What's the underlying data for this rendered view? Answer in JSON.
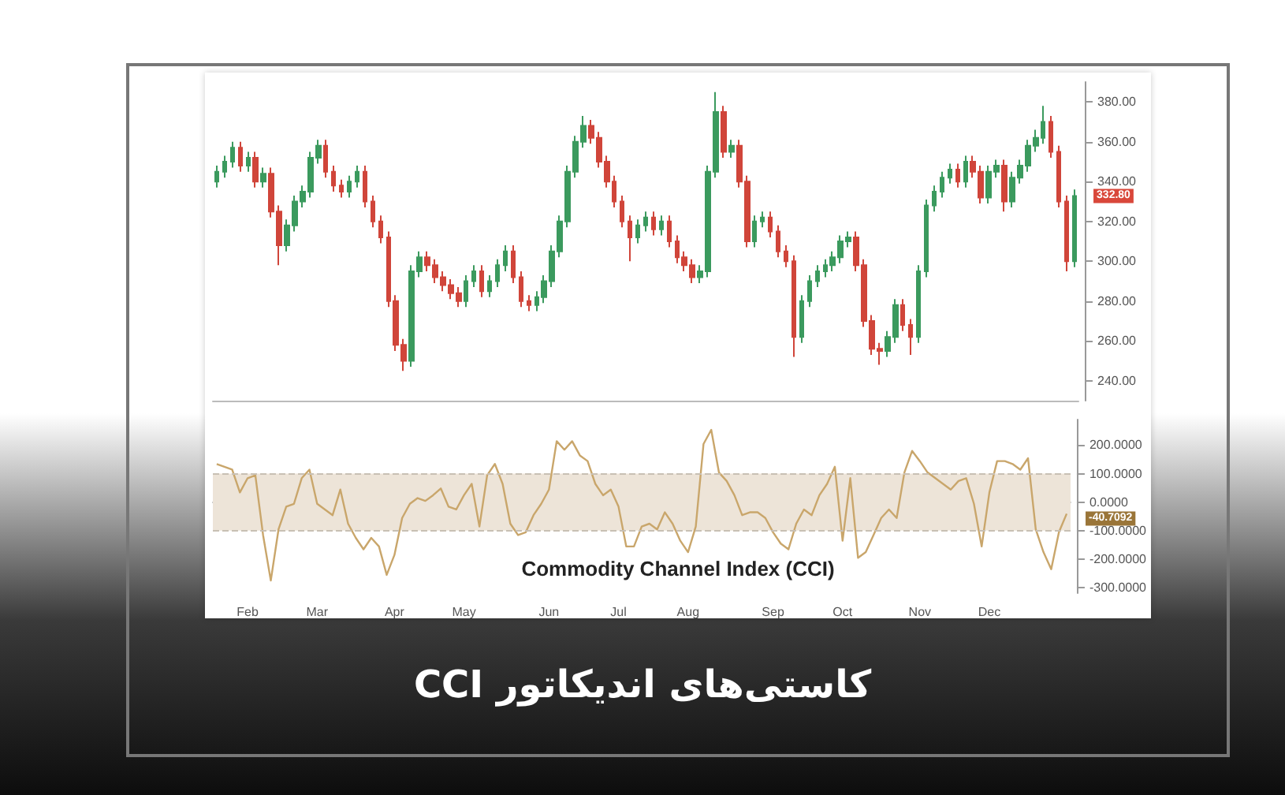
{
  "chart_data": [
    {
      "type": "candlestick",
      "title": "کاستی‌های اندیکاتور CCI",
      "categories": [
        null,
        null,
        null,
        null,
        null,
        null,
        null,
        null,
        null,
        null,
        null,
        null,
        null,
        null,
        null,
        null,
        null,
        null,
        null,
        null,
        null,
        null,
        null,
        null,
        null,
        null,
        null,
        null,
        null,
        null,
        null,
        null,
        null,
        null,
        null,
        null,
        null,
        null,
        null,
        null,
        null,
        null,
        null,
        null,
        null,
        null,
        null,
        null,
        null,
        null,
        null,
        null,
        null,
        null,
        null,
        null,
        null,
        null,
        null,
        null,
        null,
        null,
        null,
        null,
        null,
        null,
        null,
        null,
        null,
        null,
        null,
        null,
        null,
        null,
        null,
        null,
        null,
        null,
        null,
        null,
        null,
        null,
        null,
        null,
        null,
        null,
        null,
        null,
        null,
        null,
        null,
        null,
        null,
        null,
        null,
        null,
        null,
        null,
        null,
        null,
        null,
        null,
        null,
        null,
        null,
        null,
        null,
        null,
        null,
        null,
        null
      ],
      "ohlc": [
        [
          340,
          348,
          337,
          345
        ],
        [
          345,
          353,
          342,
          350
        ],
        [
          350,
          360,
          347,
          357
        ],
        [
          357,
          360,
          345,
          348
        ],
        [
          348,
          355,
          345,
          352
        ],
        [
          352,
          355,
          337,
          340
        ],
        [
          340,
          347,
          337,
          344
        ],
        [
          344,
          347,
          322,
          325
        ],
        [
          325,
          328,
          298,
          308
        ],
        [
          308,
          321,
          305,
          318
        ],
        [
          318,
          333,
          315,
          330
        ],
        [
          330,
          338,
          327,
          335
        ],
        [
          335,
          355,
          332,
          352
        ],
        [
          352,
          361,
          349,
          358
        ],
        [
          358,
          361,
          342,
          345
        ],
        [
          345,
          348,
          335,
          338
        ],
        [
          338,
          341,
          332,
          335
        ],
        [
          335,
          343,
          332,
          340
        ],
        [
          340,
          348,
          337,
          345
        ],
        [
          345,
          348,
          327,
          330
        ],
        [
          330,
          333,
          317,
          320
        ],
        [
          320,
          323,
          309,
          312
        ],
        [
          312,
          315,
          277,
          280
        ],
        [
          280,
          283,
          255,
          258
        ],
        [
          258,
          261,
          245,
          250
        ],
        [
          250,
          298,
          247,
          295
        ],
        [
          295,
          305,
          292,
          302
        ],
        [
          302,
          305,
          295,
          298
        ],
        [
          298,
          301,
          289,
          292
        ],
        [
          292,
          295,
          285,
          288
        ],
        [
          288,
          291,
          281,
          284
        ],
        [
          284,
          287,
          277,
          280
        ],
        [
          280,
          293,
          277,
          290
        ],
        [
          290,
          298,
          287,
          295
        ],
        [
          295,
          298,
          282,
          285
        ],
        [
          285,
          293,
          282,
          290
        ],
        [
          290,
          301,
          287,
          298
        ],
        [
          298,
          308,
          295,
          305
        ],
        [
          305,
          308,
          289,
          292
        ],
        [
          292,
          295,
          277,
          280
        ],
        [
          280,
          283,
          275,
          278
        ],
        [
          278,
          285,
          275,
          282
        ],
        [
          282,
          293,
          279,
          290
        ],
        [
          290,
          308,
          287,
          305
        ],
        [
          305,
          323,
          302,
          320
        ],
        [
          320,
          348,
          317,
          345
        ],
        [
          345,
          363,
          342,
          360
        ],
        [
          360,
          373,
          357,
          368
        ],
        [
          368,
          371,
          359,
          362
        ],
        [
          362,
          365,
          347,
          350
        ],
        [
          350,
          353,
          337,
          340
        ],
        [
          340,
          343,
          327,
          330
        ],
        [
          330,
          333,
          317,
          320
        ],
        [
          320,
          323,
          300,
          312
        ],
        [
          312,
          321,
          309,
          318
        ],
        [
          318,
          325,
          315,
          322
        ],
        [
          322,
          325,
          313,
          316
        ],
        [
          316,
          323,
          313,
          320
        ],
        [
          320,
          323,
          307,
          310
        ],
        [
          310,
          313,
          299,
          302
        ],
        [
          302,
          305,
          295,
          298
        ],
        [
          298,
          301,
          289,
          292
        ],
        [
          292,
          298,
          289,
          295
        ],
        [
          295,
          348,
          292,
          345
        ],
        [
          345,
          385,
          342,
          375
        ],
        [
          375,
          378,
          352,
          355
        ],
        [
          355,
          361,
          352,
          358
        ],
        [
          358,
          361,
          337,
          340
        ],
        [
          340,
          343,
          307,
          310
        ],
        [
          310,
          323,
          307,
          320
        ],
        [
          320,
          325,
          317,
          322
        ],
        [
          322,
          325,
          312,
          315
        ],
        [
          315,
          318,
          302,
          305
        ],
        [
          305,
          308,
          297,
          300
        ],
        [
          300,
          303,
          252,
          262
        ],
        [
          262,
          283,
          259,
          280
        ],
        [
          280,
          293,
          277,
          290
        ],
        [
          290,
          298,
          287,
          295
        ],
        [
          295,
          301,
          292,
          298
        ],
        [
          298,
          305,
          295,
          302
        ],
        [
          302,
          313,
          299,
          310
        ],
        [
          310,
          315,
          307,
          312
        ],
        [
          312,
          315,
          295,
          298
        ],
        [
          298,
          301,
          267,
          270
        ],
        [
          270,
          273,
          253,
          256
        ],
        [
          256,
          259,
          248,
          255
        ],
        [
          255,
          265,
          252,
          262
        ],
        [
          262,
          281,
          259,
          278
        ],
        [
          278,
          281,
          265,
          268
        ],
        [
          268,
          271,
          253,
          262
        ],
        [
          262,
          298,
          259,
          295
        ],
        [
          295,
          331,
          292,
          328
        ],
        [
          328,
          338,
          325,
          335
        ],
        [
          335,
          345,
          332,
          342
        ],
        [
          342,
          349,
          339,
          346
        ],
        [
          346,
          349,
          337,
          340
        ],
        [
          340,
          353,
          337,
          350
        ],
        [
          350,
          353,
          342,
          345
        ],
        [
          345,
          348,
          329,
          332
        ],
        [
          332,
          348,
          329,
          345
        ],
        [
          345,
          351,
          342,
          348
        ],
        [
          348,
          351,
          325,
          330
        ],
        [
          330,
          345,
          327,
          342
        ],
        [
          342,
          351,
          339,
          348
        ],
        [
          348,
          361,
          345,
          358
        ],
        [
          358,
          366,
          355,
          362
        ],
        [
          362,
          378,
          359,
          370
        ],
        [
          370,
          373,
          352,
          355
        ],
        [
          355,
          358,
          327,
          330
        ],
        [
          330,
          333,
          295,
          300
        ],
        [
          300,
          336,
          297,
          332.8
        ]
      ],
      "ylim": [
        230,
        390
      ],
      "yticks": [
        {
          "value": 240,
          "label": "240.00"
        },
        {
          "value": 260,
          "label": "260.00"
        },
        {
          "value": 280,
          "label": "280.00"
        },
        {
          "value": 300,
          "label": "300.00"
        },
        {
          "value": 320,
          "label": "320.00"
        },
        {
          "value": 340,
          "label": "340.00"
        },
        {
          "value": 360,
          "label": "360.00"
        },
        {
          "value": 380,
          "label": "380.00"
        }
      ],
      "annotations": [
        "332.80"
      ],
      "tick_labels": "y",
      "grid": false
    },
    {
      "type": "line",
      "title": "Commodity Channel Index (CCI)",
      "categories": [
        null,
        null,
        null,
        null,
        "Feb",
        null,
        null,
        null,
        null,
        null,
        null,
        null,
        null,
        "Mar",
        null,
        null,
        null,
        null,
        null,
        null,
        null,
        null,
        null,
        "Apr",
        null,
        null,
        null,
        null,
        null,
        null,
        null,
        null,
        "May",
        null,
        null,
        null,
        null,
        null,
        null,
        null,
        null,
        null,
        null,
        "Jun",
        null,
        null,
        null,
        null,
        null,
        null,
        null,
        null,
        "Jul",
        null,
        null,
        null,
        null,
        null,
        null,
        null,
        null,
        "Aug",
        null,
        null,
        null,
        null,
        null,
        null,
        null,
        null,
        null,
        null,
        "Sep",
        null,
        null,
        null,
        null,
        null,
        null,
        null,
        null,
        "Oct",
        null,
        null,
        null,
        null,
        null,
        null,
        null,
        null,
        null,
        "Nov",
        null,
        null,
        null,
        null,
        null,
        null,
        null,
        null,
        "Dec",
        null,
        null,
        null,
        null,
        null,
        null,
        null,
        null,
        null,
        null
      ],
      "series": [
        {
          "color": "#c9a66b",
          "values": [
            134,
            124,
            114,
            34,
            84,
            94,
            -116,
            -276,
            -96,
            -16,
            -6,
            84,
            114,
            -6,
            -26,
            -46,
            44,
            -76,
            -126,
            -166,
            -126,
            -156,
            -256,
            -186,
            -56,
            -6,
            14,
            4,
            24,
            48,
            -16,
            -26,
            24,
            64,
            -86,
            94,
            134,
            64,
            -76,
            -116,
            -106,
            -46,
            -6,
            44,
            214,
            184,
            214,
            164,
            144,
            64,
            24,
            44,
            -16,
            -156,
            -156,
            -86,
            -76,
            -96,
            -36,
            -76,
            -136,
            -176,
            -86,
            204,
            254,
            104,
            74,
            24,
            -46,
            -36,
            -36,
            -56,
            -106,
            -146,
            -166,
            -76,
            -26,
            -46,
            24,
            64,
            124,
            -136,
            84,
            -196,
            -176,
            -116,
            -56,
            -26,
            -56,
            104,
            180,
            144,
            104,
            84,
            64,
            44,
            74,
            84,
            -6,
            -156,
            34,
            144,
            144,
            134,
            114,
            154,
            -96,
            -176,
            -236,
            -106,
            -41
          ]
        }
      ],
      "ylim": [
        -320,
        290
      ],
      "yticks": [
        {
          "value": 200,
          "label": "200.0000"
        },
        {
          "value": 100,
          "label": "100.0000"
        },
        {
          "value": 0,
          "label": "0.0000"
        },
        {
          "value": -100,
          "label": "-100.0000"
        },
        {
          "value": -200,
          "label": "-200.0000"
        },
        {
          "value": -300,
          "label": "-300.0000"
        }
      ],
      "ref_lines": [
        {
          "axis": "y",
          "value": 100,
          "color": "#c8c0b4",
          "line_style": "dashed"
        },
        {
          "axis": "y",
          "value": -100,
          "color": "#c8c0b4",
          "line_style": "dashed"
        }
      ],
      "bands": [
        {
          "axis": "y",
          "from": -100,
          "to": 100,
          "color": "#ede4d8"
        }
      ],
      "annotations": [
        "-40.7092"
      ],
      "marker": "none",
      "grid": false
    }
  ]
}
